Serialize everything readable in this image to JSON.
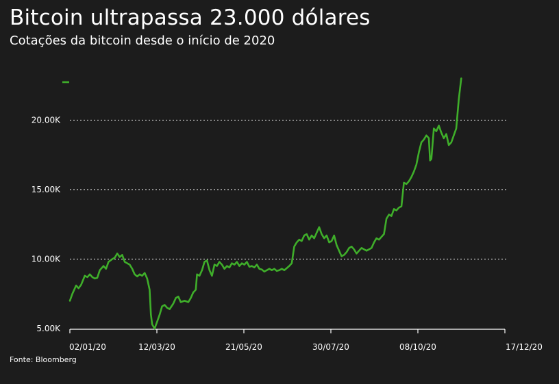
{
  "title": "Bitcoin ultrapassa 23.000 dólares",
  "subtitle": "Cotações da bitcoin desde o início de 2020",
  "source": "Fonte: Bloomberg",
  "colors": {
    "line": "#3fae2a",
    "background": "#1c1c1c",
    "grid": "#ffffff",
    "text": "#ffffff"
  },
  "chart_data": {
    "type": "line",
    "title": "Bitcoin ultrapassa 23.000 dólares",
    "subtitle": "Cotações da bitcoin desde o início de 2020",
    "xlabel": "",
    "ylabel": "",
    "ylim": [
      5000,
      25000
    ],
    "grid": "horizontal dotted",
    "legend": "none",
    "x_tick_labels": [
      "02/01/20",
      "12/03/20",
      "21/05/20",
      "30/07/20",
      "08/10/20",
      "17/12/20"
    ],
    "y_ticks": [
      {
        "value": 5000,
        "label": "5.00K"
      },
      {
        "value": 10000,
        "label": "10.00K"
      },
      {
        "value": 15000,
        "label": "15.00K"
      },
      {
        "value": 20000,
        "label": "20.00K"
      }
    ],
    "series": [
      {
        "values": [
          [
            1,
            7000
          ],
          [
            3,
            7500
          ],
          [
            6,
            8100
          ],
          [
            8,
            7900
          ],
          [
            10,
            8150
          ],
          [
            13,
            8800
          ],
          [
            15,
            8700
          ],
          [
            17,
            8900
          ],
          [
            19,
            8700
          ],
          [
            21,
            8600
          ],
          [
            23,
            8650
          ],
          [
            25,
            9200
          ],
          [
            28,
            9500
          ],
          [
            30,
            9300
          ],
          [
            32,
            9800
          ],
          [
            35,
            10000
          ],
          [
            37,
            10100
          ],
          [
            39,
            10400
          ],
          [
            41,
            10150
          ],
          [
            43,
            10300
          ],
          [
            45,
            9800
          ],
          [
            47,
            9700
          ],
          [
            49,
            9600
          ],
          [
            51,
            9300
          ],
          [
            53,
            8900
          ],
          [
            55,
            8750
          ],
          [
            57,
            8900
          ],
          [
            59,
            8800
          ],
          [
            61,
            9000
          ],
          [
            63,
            8600
          ],
          [
            65,
            7800
          ],
          [
            66,
            6000
          ],
          [
            67,
            5300
          ],
          [
            69,
            5000
          ],
          [
            71,
            5500
          ],
          [
            73,
            6000
          ],
          [
            75,
            6600
          ],
          [
            77,
            6700
          ],
          [
            79,
            6500
          ],
          [
            81,
            6400
          ],
          [
            84,
            6800
          ],
          [
            86,
            7200
          ],
          [
            88,
            7300
          ],
          [
            90,
            6900
          ],
          [
            93,
            7000
          ],
          [
            96,
            6900
          ],
          [
            98,
            7200
          ],
          [
            100,
            7600
          ],
          [
            102,
            7800
          ],
          [
            103,
            8900
          ],
          [
            105,
            8800
          ],
          [
            107,
            9200
          ],
          [
            109,
            9800
          ],
          [
            111,
            9900
          ],
          [
            113,
            9200
          ],
          [
            115,
            8800
          ],
          [
            117,
            9600
          ],
          [
            119,
            9500
          ],
          [
            121,
            9800
          ],
          [
            123,
            9600
          ],
          [
            125,
            9300
          ],
          [
            127,
            9500
          ],
          [
            129,
            9400
          ],
          [
            131,
            9700
          ],
          [
            133,
            9600
          ],
          [
            135,
            9800
          ],
          [
            137,
            9500
          ],
          [
            139,
            9700
          ],
          [
            141,
            9600
          ],
          [
            143,
            9800
          ],
          [
            145,
            9450
          ],
          [
            147,
            9500
          ],
          [
            149,
            9400
          ],
          [
            151,
            9600
          ],
          [
            153,
            9300
          ],
          [
            155,
            9250
          ],
          [
            157,
            9100
          ],
          [
            159,
            9200
          ],
          [
            161,
            9300
          ],
          [
            163,
            9200
          ],
          [
            165,
            9300
          ],
          [
            167,
            9150
          ],
          [
            169,
            9200
          ],
          [
            171,
            9300
          ],
          [
            173,
            9200
          ],
          [
            175,
            9350
          ],
          [
            177,
            9500
          ],
          [
            179,
            9700
          ],
          [
            181,
            10900
          ],
          [
            183,
            11200
          ],
          [
            185,
            11400
          ],
          [
            187,
            11300
          ],
          [
            189,
            11700
          ],
          [
            191,
            11800
          ],
          [
            193,
            11400
          ],
          [
            195,
            11700
          ],
          [
            197,
            11500
          ],
          [
            199,
            11900
          ],
          [
            201,
            12300
          ],
          [
            203,
            11800
          ],
          [
            205,
            11500
          ],
          [
            207,
            11700
          ],
          [
            209,
            11200
          ],
          [
            211,
            11300
          ],
          [
            213,
            11700
          ],
          [
            215,
            11000
          ],
          [
            217,
            10600
          ],
          [
            219,
            10200
          ],
          [
            221,
            10300
          ],
          [
            223,
            10500
          ],
          [
            225,
            10800
          ],
          [
            227,
            10900
          ],
          [
            229,
            10700
          ],
          [
            231,
            10400
          ],
          [
            233,
            10600
          ],
          [
            235,
            10800
          ],
          [
            237,
            10700
          ],
          [
            239,
            10600
          ],
          [
            241,
            10700
          ],
          [
            243,
            10800
          ],
          [
            245,
            11200
          ],
          [
            247,
            11500
          ],
          [
            249,
            11400
          ],
          [
            251,
            11600
          ],
          [
            253,
            11800
          ],
          [
            255,
            12900
          ],
          [
            257,
            13200
          ],
          [
            259,
            13100
          ],
          [
            261,
            13600
          ],
          [
            263,
            13500
          ],
          [
            265,
            13700
          ],
          [
            267,
            13800
          ],
          [
            269,
            15500
          ],
          [
            271,
            15400
          ],
          [
            273,
            15600
          ],
          [
            275,
            15900
          ],
          [
            277,
            16300
          ],
          [
            279,
            16800
          ],
          [
            281,
            17700
          ],
          [
            283,
            18400
          ],
          [
            285,
            18600
          ],
          [
            287,
            18900
          ],
          [
            289,
            18700
          ],
          [
            290,
            17100
          ],
          [
            291,
            17200
          ],
          [
            293,
            19400
          ],
          [
            295,
            19200
          ],
          [
            297,
            19600
          ],
          [
            299,
            19100
          ],
          [
            301,
            18700
          ],
          [
            303,
            19000
          ],
          [
            305,
            18200
          ],
          [
            307,
            18400
          ],
          [
            309,
            18900
          ],
          [
            311,
            19400
          ],
          [
            313,
            21500
          ],
          [
            315,
            23000
          ]
        ]
      }
    ]
  }
}
